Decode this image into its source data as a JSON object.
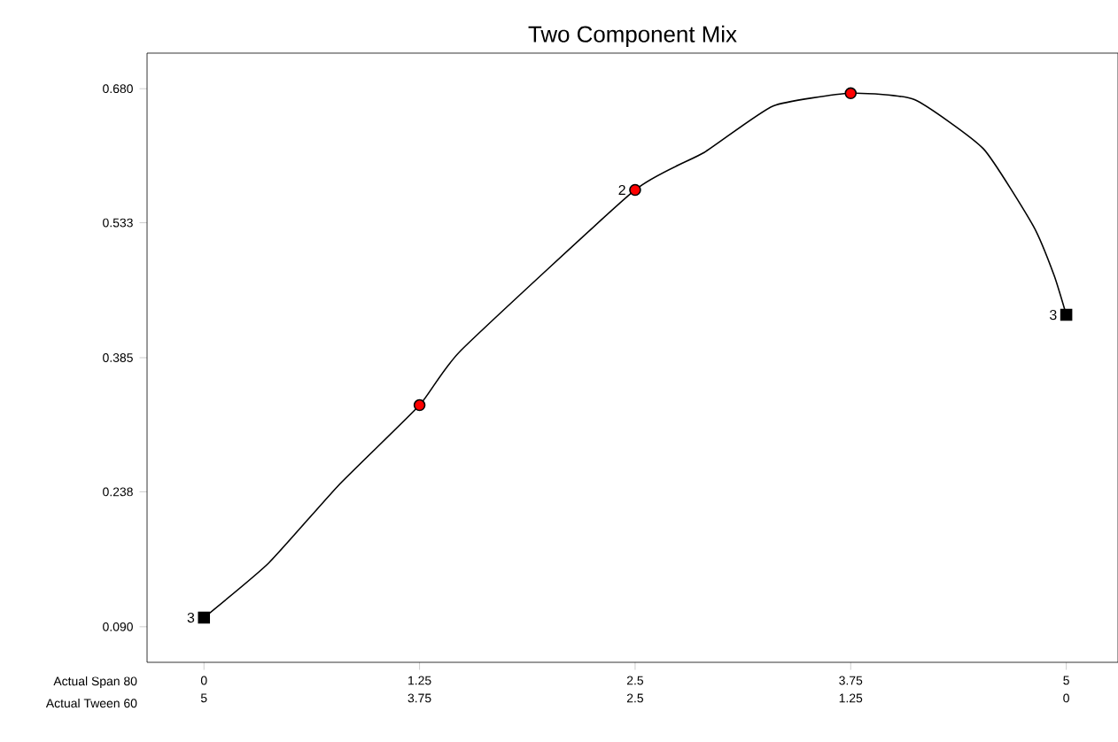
{
  "chart_data": {
    "type": "line",
    "title": "Two Component Mix",
    "xlabel": "Actual Span 80",
    "x2label": "Actual Tween 60",
    "xlim": [
      -0.33,
      5.3
    ],
    "xticks": [
      0,
      1.25,
      2.5,
      3.75,
      5
    ],
    "x2lim": [
      5.33,
      -0.3
    ],
    "x2ticks": [
      5,
      3.75,
      2.5,
      1.25,
      0
    ],
    "ylim": [
      0.051,
      0.719
    ],
    "yticks": [
      {
        "value": 0.09,
        "label": "0.090"
      },
      {
        "value": 0.238,
        "label": "0.238"
      },
      {
        "value": 0.385,
        "label": "0.385"
      },
      {
        "value": 0.533,
        "label": "0.533"
      },
      {
        "value": 0.68,
        "label": "0.680"
      }
    ],
    "series": [
      {
        "color": "#000000",
        "marker": "none",
        "x": [
          0,
          0.376,
          0.78,
          1.25,
          1.49,
          2.5,
          2.9,
          3.3,
          3.75,
          4.12,
          4.52,
          4.81,
          4.93,
          5
        ],
        "values": [
          0.1,
          0.16,
          0.245,
          0.333,
          0.393,
          0.569,
          0.61,
          0.661,
          0.675,
          0.668,
          0.614,
          0.529,
          0.475,
          0.432
        ]
      },
      {
        "type": "scatter",
        "color": "#ff0000",
        "marker": "circle",
        "x": [
          1.25,
          2.5,
          3.75
        ],
        "values": [
          0.333,
          0.569,
          0.675
        ]
      },
      {
        "type": "scatter",
        "color": "#000000",
        "marker": "square",
        "x": [
          0,
          5
        ],
        "values": [
          0.1,
          0.432
        ]
      }
    ],
    "annotations": [
      {
        "text": "3",
        "x": 0,
        "y": 0.1
      },
      {
        "text": "2",
        "x": 2.5,
        "y": 0.569
      },
      {
        "text": "3",
        "x": 5,
        "y": 0.432
      }
    ]
  }
}
